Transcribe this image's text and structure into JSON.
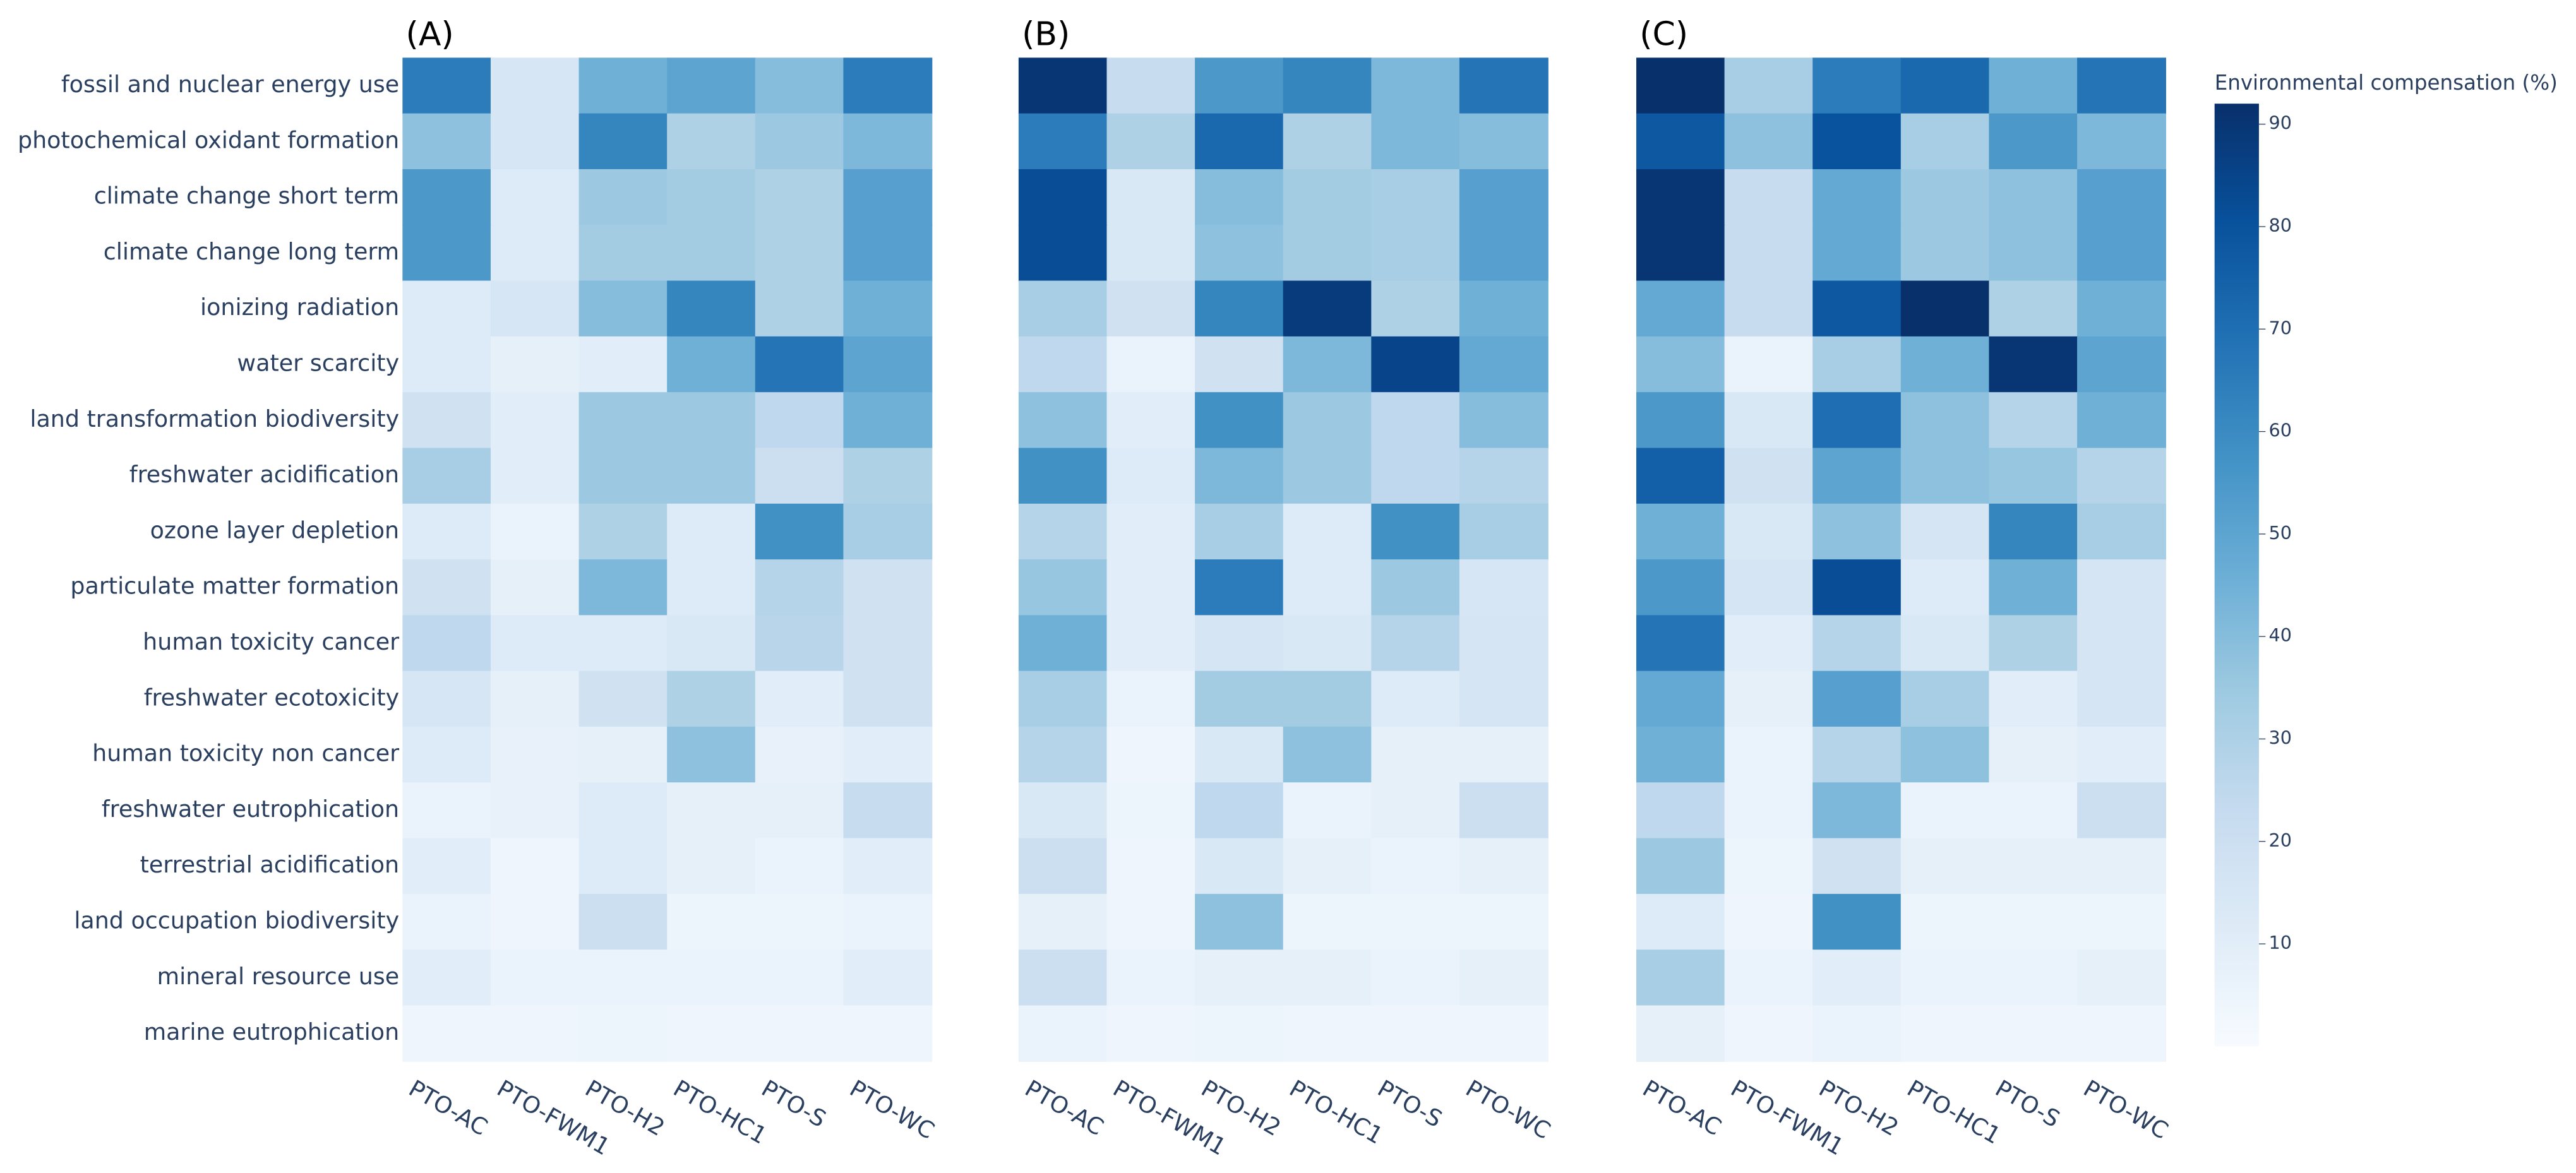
{
  "chart_data": [
    {
      "type": "heatmap",
      "title": "(A)",
      "x": [
        "PTO-AC",
        "PTO-FWM1",
        "PTO-H2",
        "PTO-HC1",
        "PTO-S",
        "PTO-WC"
      ],
      "y": [
        "fossil and nuclear energy use",
        "photochemical oxidant formation",
        "climate change short term",
        "climate change long term",
        "ionizing radiation",
        "water scarcity",
        "land transformation biodiversity",
        "freshwater acidification",
        "ozone layer depletion",
        "particulate matter formation",
        "human toxicity cancer",
        "freshwater ecotoxicity",
        "human toxicity non cancer",
        "freshwater eutrophication",
        "terrestrial acidification",
        "land occupation biodiversity",
        "mineral resource use",
        "marine eutrophication"
      ],
      "z": [
        [
          65,
          15,
          45,
          50,
          40,
          65
        ],
        [
          38,
          15,
          62,
          30,
          35,
          42
        ],
        [
          55,
          12,
          35,
          33,
          30,
          52
        ],
        [
          55,
          12,
          33,
          33,
          30,
          52
        ],
        [
          12,
          15,
          40,
          62,
          30,
          45
        ],
        [
          12,
          8,
          10,
          45,
          68,
          50
        ],
        [
          18,
          10,
          35,
          35,
          25,
          45
        ],
        [
          32,
          10,
          35,
          35,
          20,
          30
        ],
        [
          12,
          6,
          30,
          12,
          58,
          32
        ],
        [
          18,
          8,
          42,
          12,
          28,
          18
        ],
        [
          25,
          12,
          12,
          14,
          27,
          18
        ],
        [
          15,
          8,
          18,
          30,
          10,
          18
        ],
        [
          12,
          7,
          8,
          38,
          7,
          10
        ],
        [
          6,
          7,
          12,
          8,
          8,
          22
        ],
        [
          10,
          4,
          12,
          8,
          6,
          10
        ],
        [
          6,
          4,
          20,
          5,
          5,
          6
        ],
        [
          10,
          6,
          6,
          6,
          6,
          10
        ],
        [
          4,
          4,
          5,
          4,
          4,
          4
        ]
      ],
      "zlim": [
        0,
        92
      ],
      "colorscale": [
        [
          0,
          "#f7fbff"
        ],
        [
          0.125,
          "#deebf7"
        ],
        [
          0.25,
          "#c6dbef"
        ],
        [
          0.375,
          "#9ecae1"
        ],
        [
          0.5,
          "#6baed6"
        ],
        [
          0.625,
          "#4292c6"
        ],
        [
          0.75,
          "#2171b5"
        ],
        [
          0.875,
          "#08519c"
        ],
        [
          1,
          "#08306b"
        ]
      ]
    },
    {
      "type": "heatmap",
      "title": "(B)",
      "x": [
        "PTO-AC",
        "PTO-FWM1",
        "PTO-H2",
        "PTO-HC1",
        "PTO-S",
        "PTO-WC"
      ],
      "z": [
        [
          90,
          22,
          55,
          62,
          42,
          68
        ],
        [
          65,
          30,
          72,
          30,
          42,
          40
        ],
        [
          82,
          14,
          40,
          33,
          32,
          52
        ],
        [
          82,
          14,
          38,
          33,
          32,
          52
        ],
        [
          32,
          18,
          62,
          88,
          30,
          45
        ],
        [
          25,
          6,
          18,
          42,
          85,
          48
        ],
        [
          38,
          10,
          58,
          35,
          25,
          40
        ],
        [
          58,
          12,
          42,
          35,
          25,
          28
        ],
        [
          28,
          10,
          32,
          12,
          58,
          32
        ],
        [
          36,
          10,
          65,
          12,
          35,
          15
        ],
        [
          45,
          10,
          16,
          14,
          28,
          16
        ],
        [
          32,
          6,
          33,
          33,
          12,
          16
        ],
        [
          28,
          4,
          14,
          38,
          8,
          8
        ],
        [
          14,
          5,
          25,
          6,
          8,
          20
        ],
        [
          20,
          4,
          14,
          8,
          6,
          8
        ],
        [
          8,
          4,
          38,
          5,
          5,
          5
        ],
        [
          20,
          6,
          8,
          8,
          6,
          8
        ],
        [
          6,
          4,
          5,
          4,
          4,
          4
        ]
      ],
      "zlim": [
        0,
        92
      ],
      "colorscale": [
        [
          0,
          "#f7fbff"
        ],
        [
          0.125,
          "#deebf7"
        ],
        [
          0.25,
          "#c6dbef"
        ],
        [
          0.375,
          "#9ecae1"
        ],
        [
          0.5,
          "#6baed6"
        ],
        [
          0.625,
          "#4292c6"
        ],
        [
          0.75,
          "#2171b5"
        ],
        [
          0.875,
          "#08519c"
        ],
        [
          1,
          "#08306b"
        ]
      ]
    },
    {
      "type": "heatmap",
      "title": "(C)",
      "x": [
        "PTO-AC",
        "PTO-FWM1",
        "PTO-H2",
        "PTO-HC1",
        "PTO-S",
        "PTO-WC"
      ],
      "z": [
        [
          92,
          32,
          65,
          72,
          45,
          68
        ],
        [
          78,
          38,
          80,
          32,
          55,
          42
        ],
        [
          90,
          22,
          48,
          35,
          38,
          52
        ],
        [
          90,
          22,
          48,
          35,
          38,
          52
        ],
        [
          48,
          22,
          78,
          92,
          30,
          45
        ],
        [
          40,
          6,
          32,
          45,
          90,
          50
        ],
        [
          55,
          14,
          70,
          38,
          28,
          45
        ],
        [
          75,
          18,
          50,
          38,
          36,
          28
        ],
        [
          45,
          14,
          38,
          16,
          62,
          32
        ],
        [
          55,
          16,
          82,
          12,
          45,
          16
        ],
        [
          68,
          10,
          28,
          14,
          30,
          16
        ],
        [
          48,
          8,
          52,
          32,
          10,
          16
        ],
        [
          45,
          6,
          28,
          38,
          8,
          10
        ],
        [
          25,
          6,
          42,
          6,
          6,
          20
        ],
        [
          35,
          5,
          18,
          8,
          8,
          8
        ],
        [
          12,
          4,
          58,
          5,
          5,
          5
        ],
        [
          32,
          6,
          10,
          6,
          6,
          8
        ],
        [
          8,
          4,
          6,
          4,
          4,
          4
        ]
      ],
      "zlim": [
        0,
        92
      ],
      "colorscale": [
        [
          0,
          "#f7fbff"
        ],
        [
          0.125,
          "#deebf7"
        ],
        [
          0.25,
          "#c6dbef"
        ],
        [
          0.375,
          "#9ecae1"
        ],
        [
          0.5,
          "#6baed6"
        ],
        [
          0.625,
          "#4292c6"
        ],
        [
          0.75,
          "#2171b5"
        ],
        [
          0.875,
          "#08519c"
        ],
        [
          1,
          "#08306b"
        ]
      ],
      "colorbar": {
        "title": "Environmental compensation (%)",
        "ticks": [
          10,
          20,
          30,
          40,
          50,
          60,
          70,
          80,
          90
        ]
      }
    }
  ]
}
